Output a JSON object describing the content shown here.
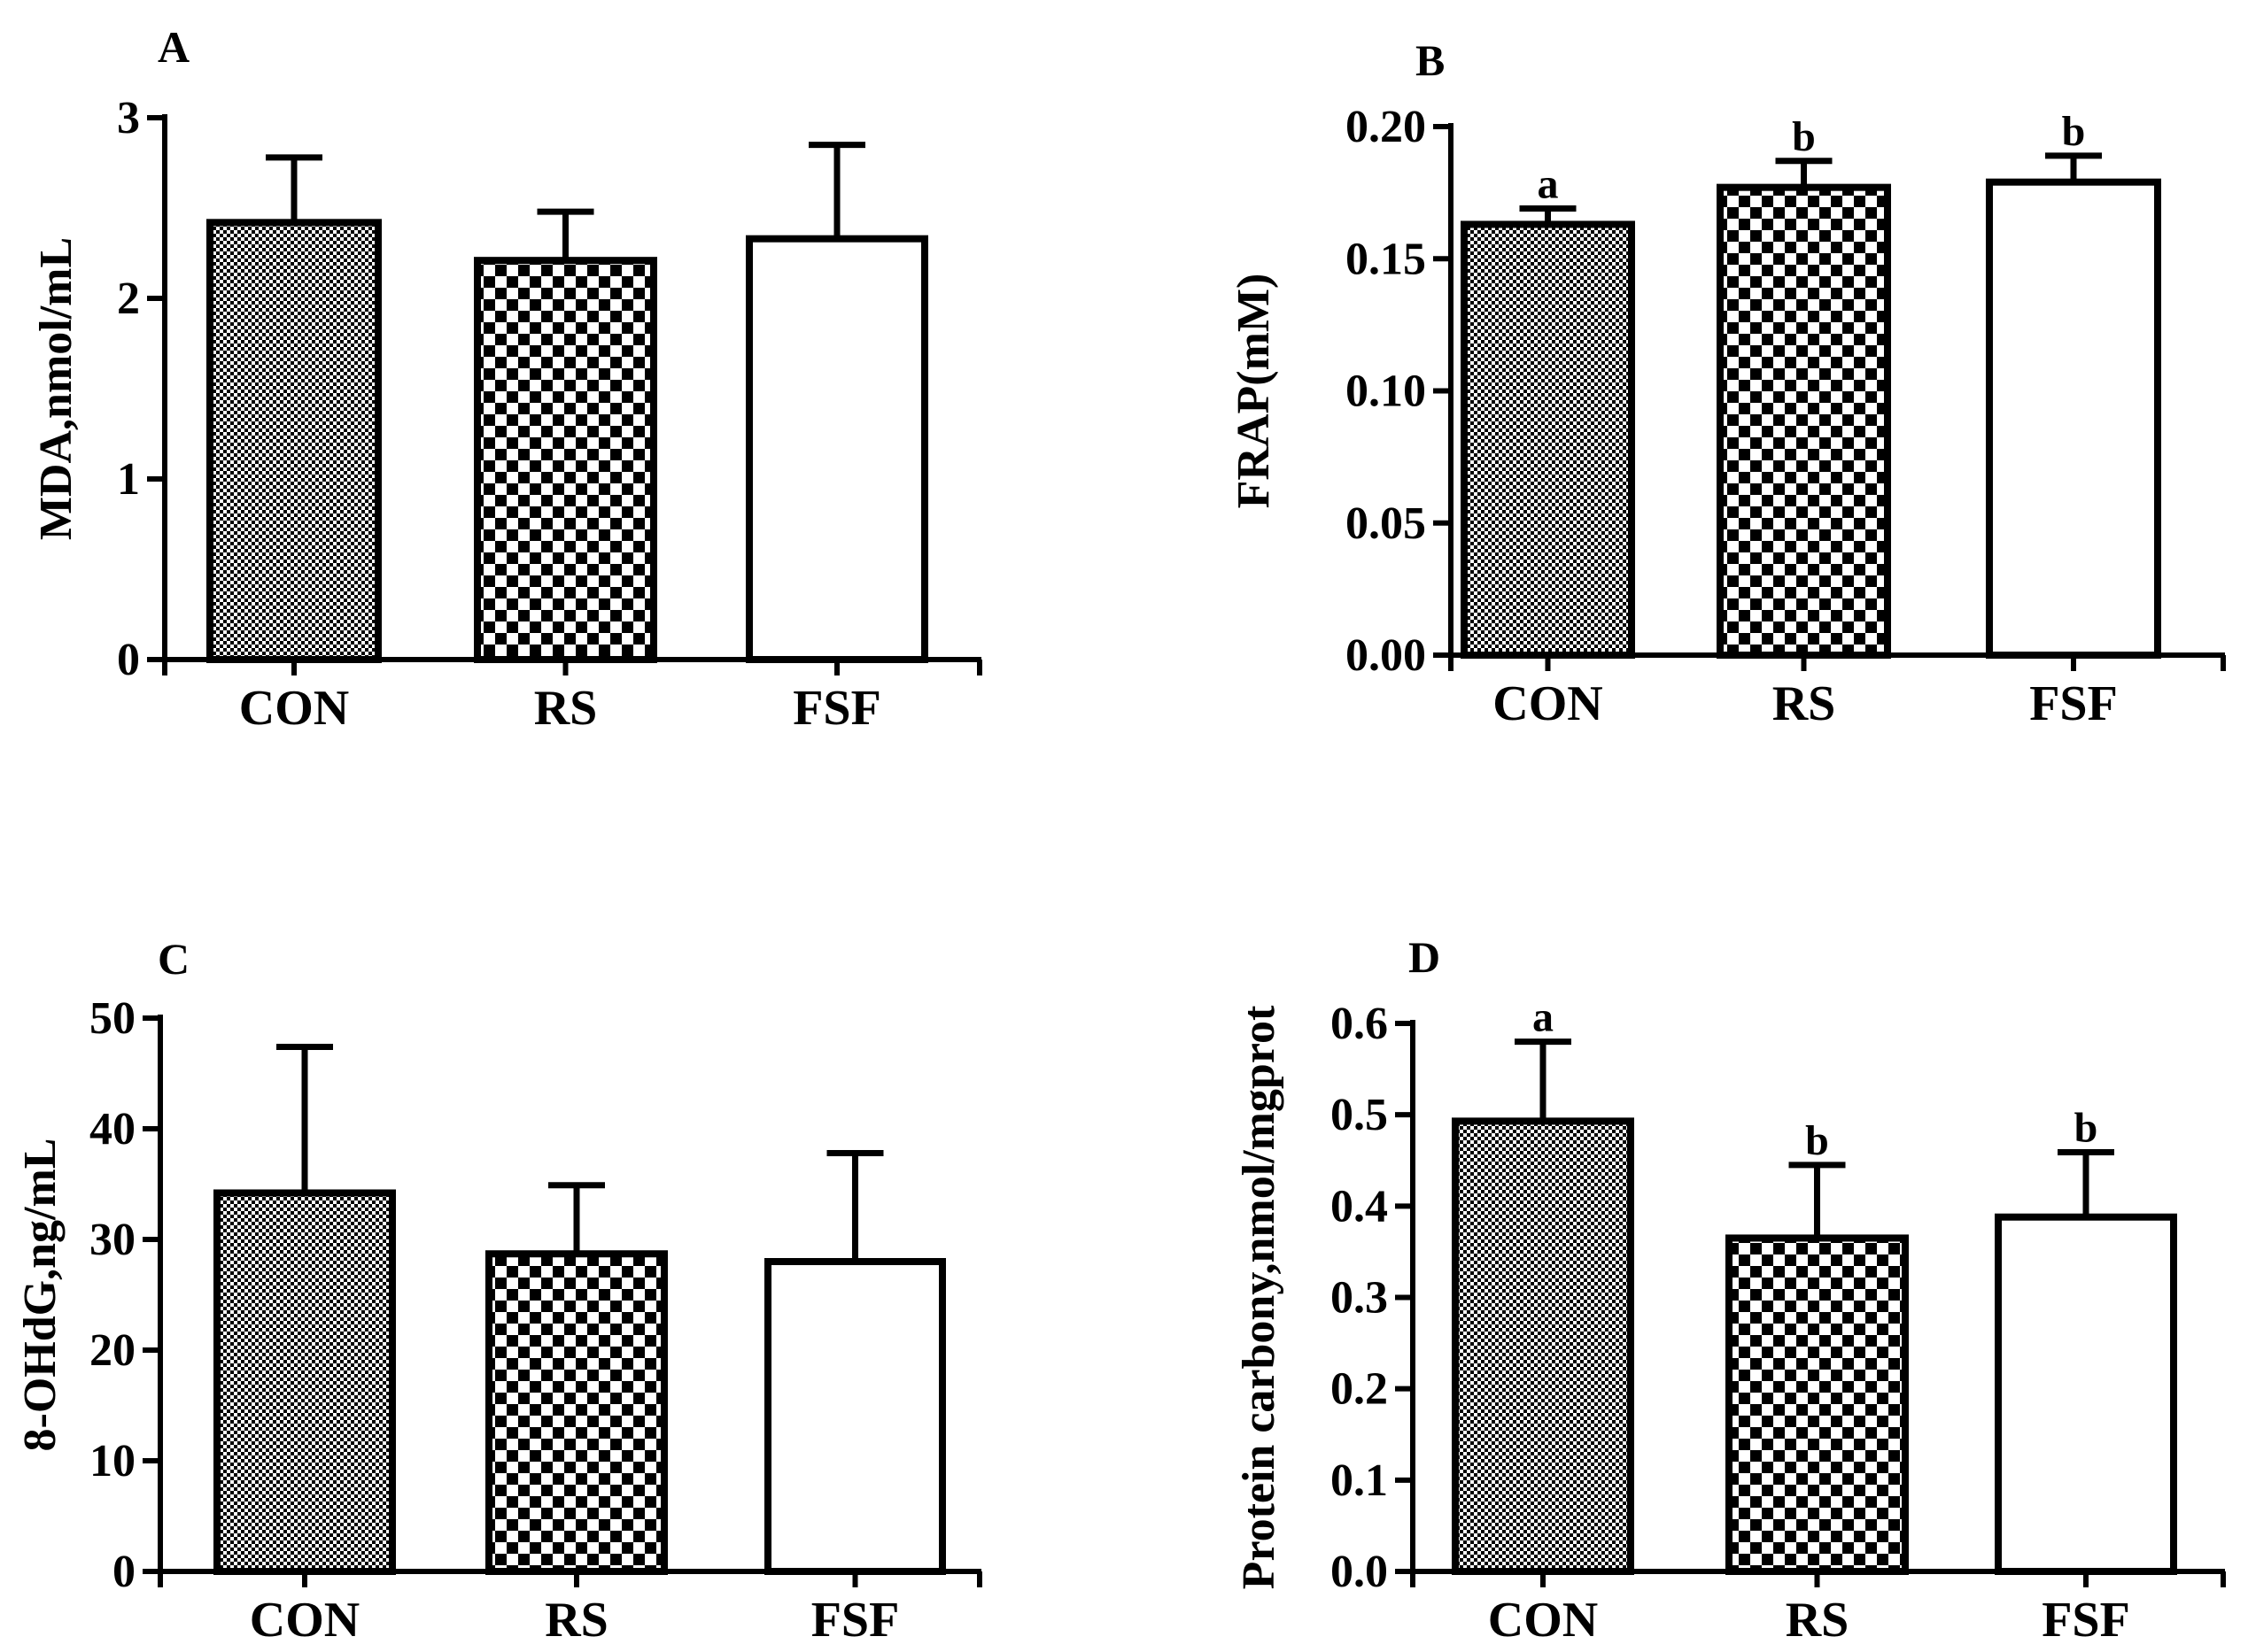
{
  "colors": {
    "ink": "#000000",
    "background": "#ffffff"
  },
  "chart_data": [
    {
      "panel": "A",
      "type": "bar",
      "categories": [
        "CON",
        "RS",
        "FSF"
      ],
      "values": [
        2.42,
        2.21,
        2.33
      ],
      "error_upper": [
        0.36,
        0.27,
        0.52
      ],
      "patterns": [
        "fine-dots",
        "checker",
        "none"
      ],
      "significance": [
        "",
        "",
        ""
      ],
      "ylabel": "MDA,nmol/mL",
      "ylim": [
        0,
        3
      ],
      "yticks": [
        0,
        1,
        2,
        3
      ],
      "ytick_labels": [
        "0",
        "1",
        "2",
        "3"
      ]
    },
    {
      "panel": "B",
      "type": "bar",
      "categories": [
        "CON",
        "RS",
        "FSF"
      ],
      "values": [
        0.163,
        0.177,
        0.179
      ],
      "error_upper": [
        0.006,
        0.01,
        0.01
      ],
      "patterns": [
        "fine-dots",
        "checker",
        "none"
      ],
      "significance": [
        "a",
        "b",
        "b"
      ],
      "ylabel": "FRAP(mM)",
      "ylim": [
        0,
        0.2
      ],
      "yticks": [
        0,
        0.05,
        0.1,
        0.15,
        0.2
      ],
      "ytick_labels": [
        "0.00",
        "0.05",
        "0.10",
        "0.15",
        "0.20"
      ]
    },
    {
      "panel": "C",
      "type": "bar",
      "categories": [
        "CON",
        "RS",
        "FSF"
      ],
      "values": [
        34.2,
        28.7,
        28.0
      ],
      "error_upper": [
        13.2,
        6.2,
        9.8
      ],
      "patterns": [
        "fine-dots",
        "checker",
        "none"
      ],
      "significance": [
        "",
        "",
        ""
      ],
      "ylabel": "8-OHdG,ng/mL",
      "ylim": [
        0,
        50
      ],
      "yticks": [
        0,
        10,
        20,
        30,
        40,
        50
      ],
      "ytick_labels": [
        "0",
        "10",
        "20",
        "30",
        "40",
        "50"
      ]
    },
    {
      "panel": "D",
      "type": "bar",
      "categories": [
        "CON",
        "RS",
        "FSF"
      ],
      "values": [
        0.493,
        0.365,
        0.388
      ],
      "error_upper": [
        0.087,
        0.08,
        0.071
      ],
      "patterns": [
        "fine-dots",
        "checker",
        "none"
      ],
      "significance": [
        "a",
        "b",
        "b"
      ],
      "ylabel": "Protein carbony,nmol/mgprot",
      "ylim": [
        0,
        0.6
      ],
      "yticks": [
        0,
        0.1,
        0.2,
        0.3,
        0.4,
        0.5,
        0.6
      ],
      "ytick_labels": [
        "0.0",
        "0.1",
        "0.2",
        "0.3",
        "0.4",
        "0.5",
        "0.6"
      ]
    }
  ]
}
